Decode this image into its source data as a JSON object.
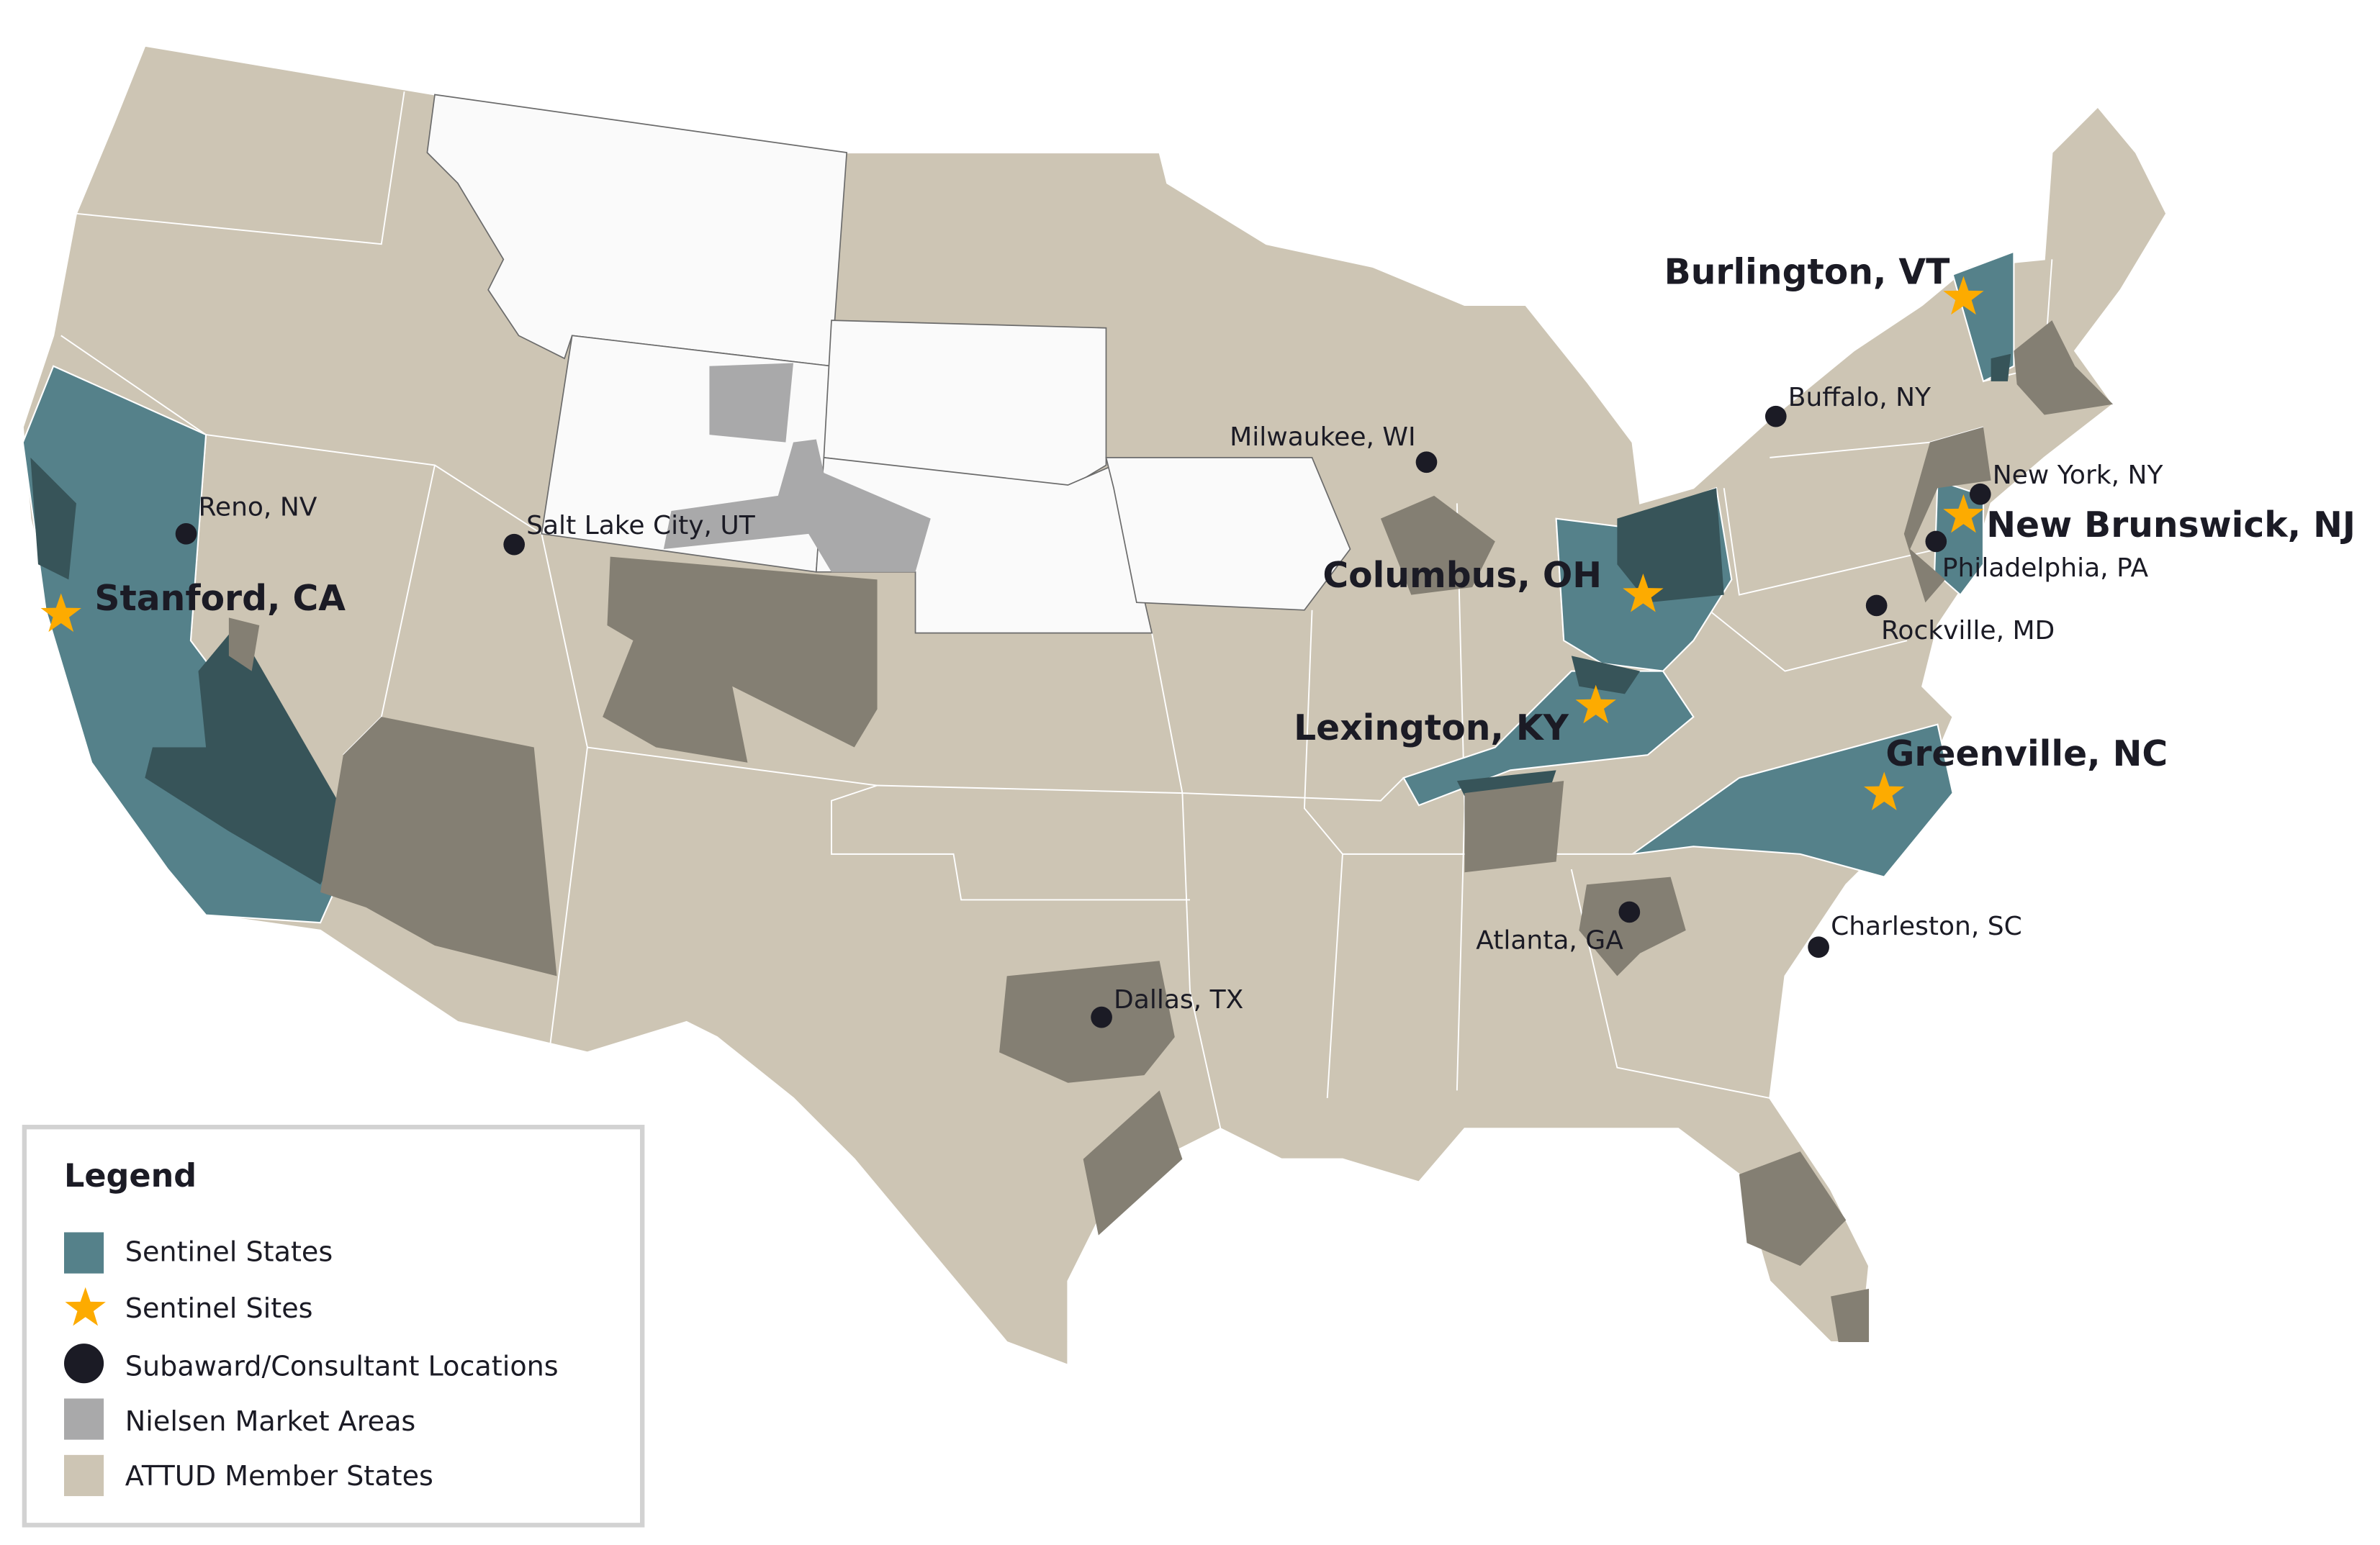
{
  "colors": {
    "sentinel_states": "#55818a",
    "sentinel_overlap": "#375459",
    "sentinel_sites": "#fdab00",
    "subaward_locations": "#1b1b25",
    "nielsen_market_areas": "#a9a9aa",
    "market_overlap": "#847f73",
    "attud_member_states": "#cdc5b4",
    "non_member_states": "#fafafa"
  },
  "sentinel_sites": [
    {
      "label": "Stanford, CA"
    },
    {
      "label": "Burlington, VT"
    },
    {
      "label": "New Brunswick, NJ"
    },
    {
      "label": "Columbus, OH"
    },
    {
      "label": "Lexington, KY"
    },
    {
      "label": "Greenville, NC"
    }
  ],
  "subaward_locations": [
    {
      "label": "Reno, NV"
    },
    {
      "label": "Salt Lake City, UT"
    },
    {
      "label": "Milwaukee, WI"
    },
    {
      "label": "Buffalo, NY"
    },
    {
      "label": "New York, NY"
    },
    {
      "label": "Philadelphia, PA"
    },
    {
      "label": "Rockville, MD"
    },
    {
      "label": "Atlanta, GA"
    },
    {
      "label": "Charleston, SC"
    },
    {
      "label": "Dallas, TX"
    }
  ],
  "legend": {
    "title": "Legend",
    "items": [
      {
        "label": "Sentinel States",
        "icon": "square"
      },
      {
        "label": "Sentinel Sites",
        "icon": "star"
      },
      {
        "label": "Subaward/Consultant Locations",
        "icon": "circle"
      },
      {
        "label": "Nielsen Market Areas",
        "icon": "square"
      },
      {
        "label": "ATTUD Member States",
        "icon": "square"
      }
    ]
  }
}
